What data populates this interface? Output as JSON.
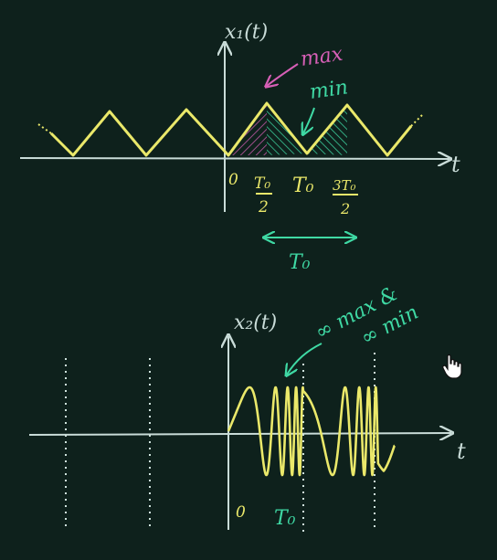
{
  "colors": {
    "background": "#0e211c",
    "axis": "#c9dcd8",
    "signal": "#eae86a",
    "annotation_green": "#3fd9a4",
    "annotation_pink": "#d65fb6",
    "dotted": "#cfe3dd"
  },
  "plot1": {
    "ylabel": "x₁(t)",
    "xlabel": "t",
    "origin": "0",
    "tick_half_num": "T₀",
    "tick_half_den": "2",
    "tick_T0": "T₀",
    "tick_3half_num": "3T₀",
    "tick_3half_den": "2",
    "period_label": "T₀",
    "label_max": "max",
    "label_min": "min"
  },
  "plot2": {
    "ylabel": "x₂(t)",
    "xlabel": "t",
    "origin": "0",
    "tick_T0": "T₀",
    "note_line1": "∞ max &",
    "note_line2": "∞ min"
  },
  "cursor": {
    "icon": "hand-pointer-icon"
  }
}
